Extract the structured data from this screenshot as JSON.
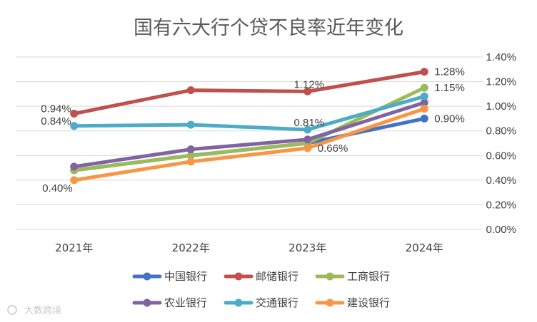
{
  "chart_data": {
    "type": "line",
    "title": "国有六大行个贷不良率近年变化",
    "categories": [
      "2021年",
      "2022年",
      "2023年",
      "2024年"
    ],
    "ylim": [
      0,
      1.4
    ],
    "y_ticks": [
      "0.00%",
      "0.20%",
      "0.40%",
      "0.60%",
      "0.80%",
      "1.00%",
      "1.20%",
      "1.40%"
    ],
    "y_axis_side": "right",
    "grid": true,
    "legend_position": "bottom",
    "series": [
      {
        "name": "中国银行",
        "color": "#4472C4",
        "values": [
          0.48,
          0.6,
          0.7,
          0.9
        ]
      },
      {
        "name": "邮储银行",
        "color": "#C0504D",
        "values": [
          0.94,
          1.13,
          1.12,
          1.28
        ]
      },
      {
        "name": "工商银行",
        "color": "#9BBB59",
        "values": [
          0.48,
          0.6,
          0.7,
          1.15
        ]
      },
      {
        "name": "农业银行",
        "color": "#8064A2",
        "values": [
          0.51,
          0.65,
          0.73,
          1.03
        ]
      },
      {
        "name": "交通银行",
        "color": "#4BACC6",
        "values": [
          0.84,
          0.85,
          0.81,
          1.08
        ]
      },
      {
        "name": "建设银行",
        "color": "#F79646",
        "values": [
          0.4,
          0.55,
          0.66,
          0.98
        ]
      }
    ],
    "data_labels": [
      {
        "text": "0.94%",
        "series": 1,
        "index": 0,
        "anchor": "end"
      },
      {
        "text": "0.84%",
        "series": 4,
        "index": 0,
        "anchor": "end"
      },
      {
        "text": "0.40%",
        "series": 5,
        "index": 0,
        "anchor": "end-below"
      },
      {
        "text": "1.12%",
        "series": 1,
        "index": 2,
        "anchor": "above"
      },
      {
        "text": "0.81%",
        "series": 4,
        "index": 2,
        "anchor": "above"
      },
      {
        "text": "0.66%",
        "series": 5,
        "index": 2,
        "anchor": "right"
      },
      {
        "text": "1.28%",
        "series": 1,
        "index": 3,
        "anchor": "right"
      },
      {
        "text": "1.15%",
        "series": 2,
        "index": 3,
        "anchor": "right"
      },
      {
        "text": "0.90%",
        "series": 0,
        "index": 3,
        "anchor": "right"
      }
    ],
    "legend_rows": [
      [
        0,
        1,
        2
      ],
      [
        3,
        4,
        5
      ]
    ]
  },
  "watermark": "大数跨境"
}
